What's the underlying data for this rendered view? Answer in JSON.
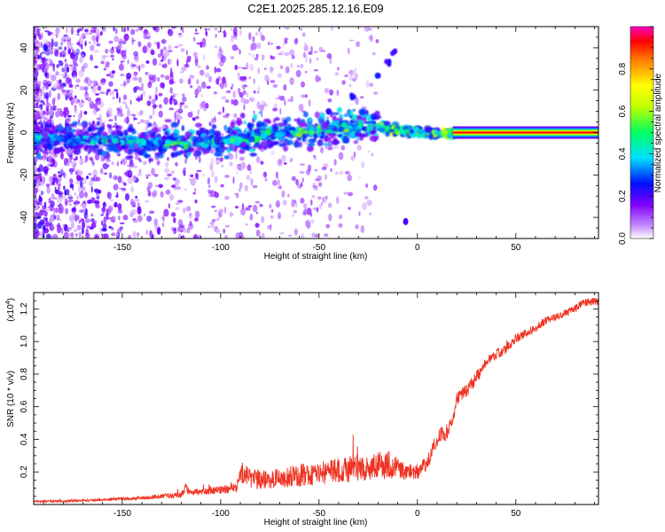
{
  "title": "C2E1.2025.285.12.16.E09",
  "chart_data": [
    {
      "type": "heatmap",
      "xlabel": "Height of straight line (km)",
      "ylabel": "Frequency (Hz)",
      "xlim": [
        -195,
        92
      ],
      "ylim": [
        -50,
        50
      ],
      "xticks": [
        -150,
        -100,
        -50,
        0,
        50
      ],
      "yticks": [
        -40,
        -20,
        0,
        20,
        40
      ],
      "colorbar": {
        "label": "Normalized spectral amplitude",
        "ticks": [
          0.0,
          0.2,
          0.4,
          0.6,
          0.8
        ],
        "range": [
          0,
          1
        ],
        "colors": [
          "#ffffff",
          "#c58cff",
          "#8000ff",
          "#0010ff",
          "#00e0ff",
          "#00ff60",
          "#c0ff00",
          "#ffff00",
          "#ff8000",
          "#ff0000",
          "#ff00c0"
        ]
      },
      "features": [
        {
          "name": "broad noise band",
          "x_range": [
            -195,
            -20
          ],
          "freq_range": [
            -50,
            50
          ]
        },
        {
          "name": "main line ridge",
          "x": [
            -190,
            -150,
            -120,
            -100,
            -75,
            -50,
            -25,
            0,
            20,
            92
          ],
          "freq": [
            -3,
            -4,
            -5,
            -4,
            -1,
            1,
            3,
            0,
            0,
            0
          ]
        },
        {
          "name": "strong stable tone",
          "x_range": [
            18,
            92
          ],
          "freq": 0
        },
        {
          "name": "rising spur",
          "x": [
            -45,
            -33,
            -20,
            -15,
            -12
          ],
          "freq": [
            10,
            17,
            27,
            33,
            38
          ]
        },
        {
          "name": "isolated spot",
          "x": -6,
          "freq": -42
        }
      ]
    },
    {
      "type": "line",
      "xlabel": "Height of straight line (km)",
      "ylabel": "SNR (10 * v/v)",
      "yunit_note": "(x10",
      "yunit_exp": "4",
      "yunit_close": ")",
      "xlim": [
        -195,
        92
      ],
      "ylim": [
        0,
        1.3
      ],
      "xticks": [
        -150,
        -100,
        -50,
        0,
        50
      ],
      "yticks": [
        0.2,
        0.4,
        0.6,
        0.8,
        1.0,
        1.2
      ],
      "color": "#ee3322",
      "series": [
        {
          "name": "SNR",
          "x": [
            -195,
            -180,
            -160,
            -140,
            -130,
            -120,
            -118,
            -115,
            -110,
            -100,
            -92,
            -90,
            -85,
            -80,
            -70,
            -60,
            -50,
            -40,
            -30,
            -20,
            -15,
            -10,
            -5,
            0,
            5,
            10,
            15,
            18,
            20,
            25,
            30,
            35,
            40,
            45,
            50,
            55,
            60,
            65,
            70,
            75,
            80,
            85,
            92
          ],
          "y": [
            0.02,
            0.02,
            0.03,
            0.04,
            0.05,
            0.06,
            0.1,
            0.07,
            0.08,
            0.09,
            0.1,
            0.2,
            0.16,
            0.15,
            0.16,
            0.18,
            0.19,
            0.21,
            0.22,
            0.24,
            0.25,
            0.22,
            0.2,
            0.2,
            0.25,
            0.4,
            0.45,
            0.5,
            0.65,
            0.7,
            0.78,
            0.88,
            0.92,
            0.95,
            1.02,
            1.05,
            1.08,
            1.13,
            1.15,
            1.17,
            1.2,
            1.24,
            1.25
          ],
          "noise": [
            0.005,
            0.008,
            0.008,
            0.01,
            0.015,
            0.02,
            0.03,
            0.02,
            0.02,
            0.025,
            0.03,
            0.07,
            0.06,
            0.06,
            0.06,
            0.07,
            0.07,
            0.08,
            0.08,
            0.08,
            0.1,
            0.06,
            0.05,
            0.05,
            0.05,
            0.05,
            0.05,
            0.04,
            0.04,
            0.04,
            0.04,
            0.03,
            0.03,
            0.03,
            0.03,
            0.025,
            0.025,
            0.025,
            0.025,
            0.025,
            0.025,
            0.025,
            0.025
          ]
        }
      ]
    }
  ]
}
